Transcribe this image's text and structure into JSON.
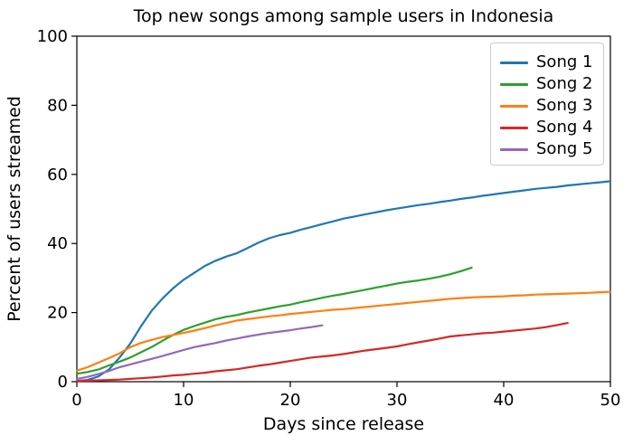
{
  "figure": {
    "background": "#ffffff",
    "text_color": "#000000"
  },
  "chart_data": {
    "type": "line",
    "title": "Top new songs among sample users in Indonesia",
    "xlabel": "Days since release",
    "ylabel": "Percent of users streamed",
    "xlim": [
      0,
      50
    ],
    "ylim": [
      0,
      100
    ],
    "xticks": [
      0,
      10,
      20,
      30,
      40,
      50
    ],
    "yticks": [
      0,
      20,
      40,
      60,
      80,
      100
    ],
    "grid": false,
    "legend_position": "upper right",
    "series": [
      {
        "name": "Song 1",
        "color": "#1f77b4",
        "x": [
          0,
          1,
          2,
          3,
          4,
          5,
          6,
          7,
          8,
          9,
          10,
          11,
          12,
          13,
          14,
          15,
          16,
          17,
          18,
          19,
          20,
          21,
          22,
          23,
          24,
          25,
          26,
          27,
          28,
          29,
          30,
          31,
          32,
          33,
          34,
          35,
          36,
          37,
          38,
          39,
          40,
          41,
          42,
          43,
          44,
          45,
          46,
          47,
          48,
          49,
          50
        ],
        "y": [
          0.2,
          0.5,
          1.5,
          3.5,
          7,
          11,
          16,
          20.5,
          24,
          27,
          29.5,
          31.5,
          33.5,
          35,
          36.2,
          37.2,
          38.7,
          40.2,
          41.5,
          42.4,
          43.1,
          44,
          44.8,
          45.6,
          46.4,
          47.2,
          47.8,
          48.4,
          49,
          49.6,
          50.1,
          50.6,
          51.1,
          51.5,
          52,
          52.4,
          52.9,
          53.3,
          53.8,
          54.2,
          54.6,
          55,
          55.4,
          55.8,
          56.1,
          56.4,
          56.8,
          57.1,
          57.4,
          57.7,
          58
        ]
      },
      {
        "name": "Song 2",
        "color": "#2ca02c",
        "x": [
          0,
          1,
          2,
          3,
          4,
          5,
          6,
          7,
          8,
          9,
          10,
          11,
          12,
          13,
          14,
          15,
          16,
          17,
          18,
          19,
          20,
          21,
          22,
          23,
          24,
          25,
          26,
          27,
          28,
          29,
          30,
          31,
          32,
          33,
          34,
          35,
          36,
          37
        ],
        "y": [
          2.3,
          2.8,
          3.5,
          4.7,
          5.8,
          7,
          8.5,
          10,
          11.8,
          13.5,
          15,
          16.1,
          17.1,
          18.1,
          18.8,
          19.3,
          20,
          20.6,
          21.2,
          21.8,
          22.3,
          23,
          23.6,
          24.3,
          24.9,
          25.4,
          26,
          26.6,
          27.2,
          27.8,
          28.4,
          28.9,
          29.3,
          29.8,
          30.4,
          31.1,
          32,
          33
        ]
      },
      {
        "name": "Song 3",
        "color": "#ff7f0e",
        "x": [
          0,
          1,
          2,
          3,
          4,
          5,
          6,
          7,
          8,
          9,
          10,
          11,
          12,
          13,
          14,
          15,
          16,
          17,
          18,
          19,
          20,
          21,
          22,
          23,
          24,
          25,
          26,
          27,
          28,
          29,
          30,
          31,
          32,
          33,
          34,
          35,
          36,
          37,
          38,
          39,
          40,
          41,
          42,
          43,
          44,
          45,
          46,
          47,
          48,
          49,
          50
        ],
        "y": [
          3.2,
          4.2,
          5.5,
          6.8,
          8.2,
          10,
          11.2,
          12.1,
          12.9,
          13.5,
          14.1,
          14.8,
          15.5,
          16.3,
          17,
          17.7,
          18.1,
          18.5,
          18.9,
          19.2,
          19.6,
          19.9,
          20.2,
          20.5,
          20.8,
          21,
          21.3,
          21.6,
          21.9,
          22.2,
          22.5,
          22.8,
          23.1,
          23.4,
          23.7,
          24,
          24.2,
          24.4,
          24.5,
          24.6,
          24.7,
          24.9,
          25,
          25.2,
          25.3,
          25.4,
          25.5,
          25.6,
          25.7,
          25.9,
          26
        ]
      },
      {
        "name": "Song 4",
        "color": "#d62728",
        "x": [
          0,
          1,
          2,
          3,
          4,
          5,
          6,
          7,
          8,
          9,
          10,
          11,
          12,
          13,
          14,
          15,
          16,
          17,
          18,
          19,
          20,
          21,
          22,
          23,
          24,
          25,
          26,
          27,
          28,
          29,
          30,
          31,
          32,
          33,
          34,
          35,
          36,
          37,
          38,
          39,
          40,
          41,
          42,
          43,
          44,
          45,
          46
        ],
        "y": [
          0.2,
          0.3,
          0.4,
          0.5,
          0.6,
          0.8,
          1,
          1.2,
          1.5,
          1.8,
          2,
          2.3,
          2.6,
          3,
          3.3,
          3.6,
          4.1,
          4.6,
          5,
          5.5,
          6,
          6.5,
          7,
          7.3,
          7.6,
          8,
          8.5,
          9,
          9.4,
          9.8,
          10.2,
          10.8,
          11.4,
          11.9,
          12.5,
          13.1,
          13.4,
          13.7,
          14,
          14.2,
          14.5,
          14.8,
          15.1,
          15.4,
          15.8,
          16.4,
          17
        ]
      },
      {
        "name": "Song 5",
        "color": "#9467bd",
        "x": [
          0,
          1,
          2,
          3,
          4,
          5,
          6,
          7,
          8,
          9,
          10,
          11,
          12,
          13,
          14,
          15,
          16,
          17,
          18,
          19,
          20,
          21,
          22,
          23
        ],
        "y": [
          0.8,
          1.4,
          2.2,
          3.1,
          4.2,
          5,
          5.8,
          6.6,
          7.4,
          8.3,
          9.2,
          10,
          10.6,
          11.2,
          11.9,
          12.5,
          13.1,
          13.6,
          14.1,
          14.5,
          14.9,
          15.4,
          15.8,
          16.3
        ]
      }
    ]
  }
}
